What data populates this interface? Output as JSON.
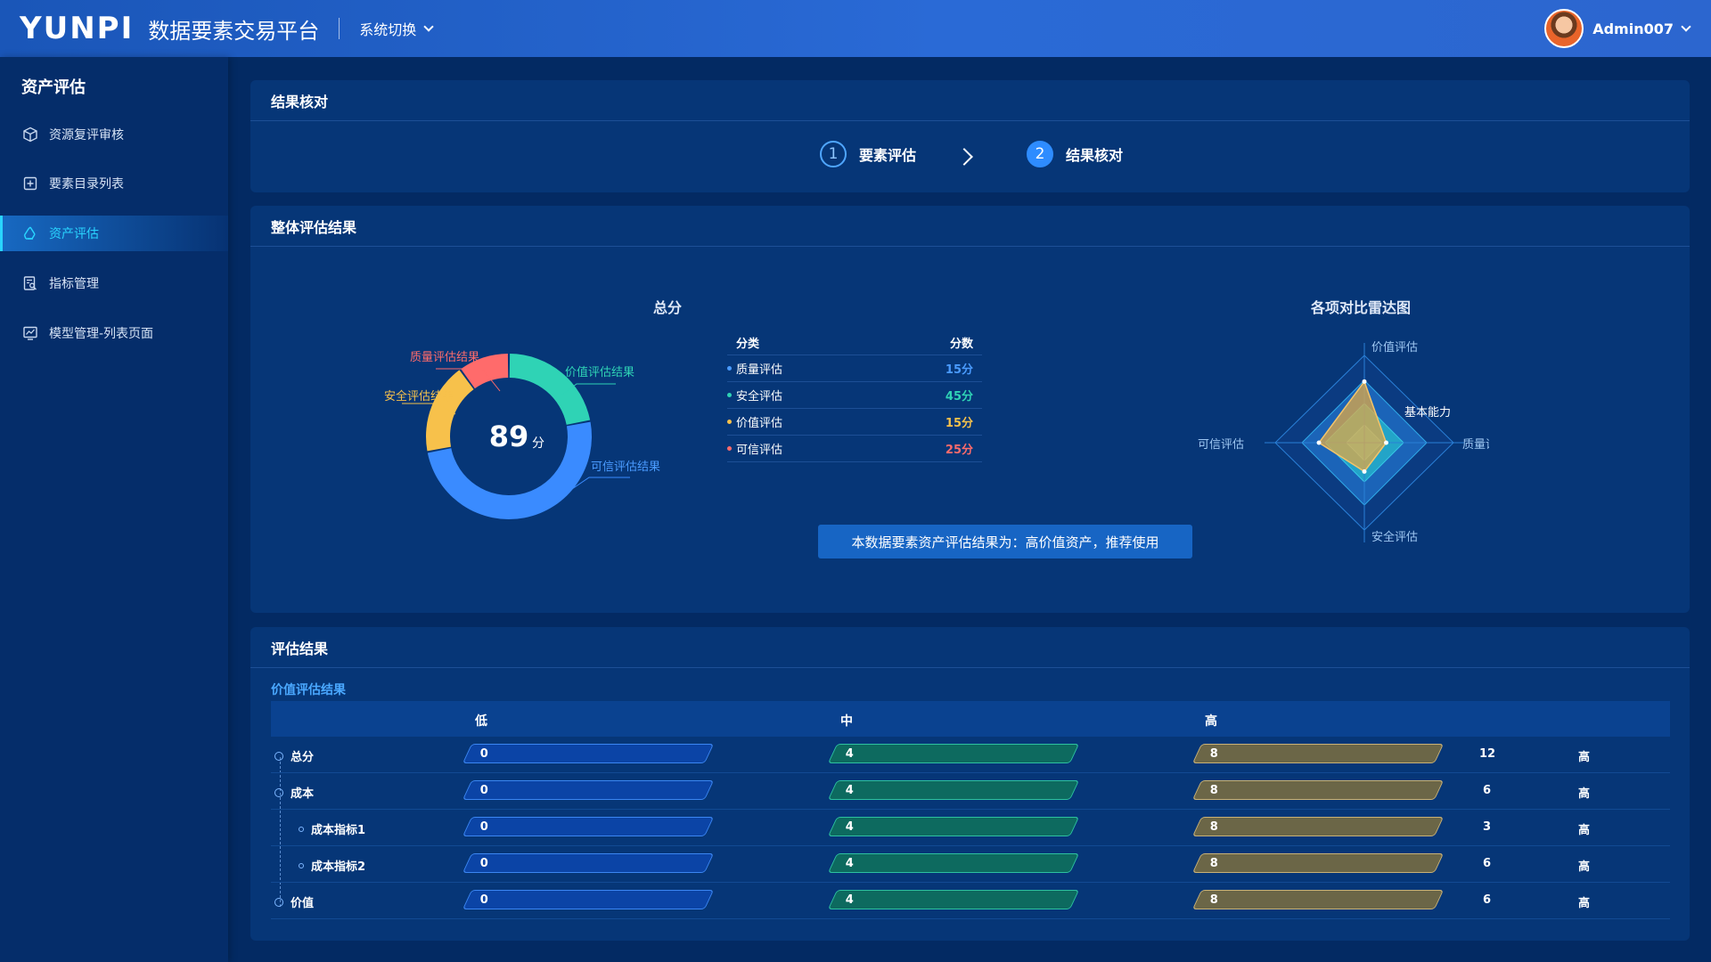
{
  "header": {
    "logo": "YUNPI",
    "platform_title": "数据要素交易平台",
    "system_switch": "系统切换",
    "username": "Admin007"
  },
  "sidebar": {
    "title": "资产评估",
    "items": [
      {
        "label": "资源复评审核",
        "icon": "cube-icon"
      },
      {
        "label": "要素目录列表",
        "icon": "add-box-icon"
      },
      {
        "label": "资产评估",
        "icon": "recycle-icon",
        "active": true
      },
      {
        "label": "指标管理",
        "icon": "document-search-icon"
      },
      {
        "label": "模型管理-列表页面",
        "icon": "chart-window-icon"
      }
    ]
  },
  "result_check": {
    "title": "结果核对",
    "steps": [
      {
        "num": "1",
        "label": "要素评估"
      },
      {
        "num": "2",
        "label": "结果核对",
        "active": true
      }
    ]
  },
  "overall": {
    "title": "整体评估结果",
    "total_title": "总分",
    "radar_title": "各项对比雷达图",
    "score": "89",
    "score_unit": "分",
    "donut_labels": [
      "质量评估结果",
      "价值评估结果",
      "安全评估结果",
      "可信评估结果"
    ],
    "table_headers": {
      "category": "分类",
      "score": "分数"
    },
    "table_rows": [
      {
        "name": "质量评估",
        "score": "15分",
        "color": "#4a9bff"
      },
      {
        "name": "安全评估",
        "score": "45分",
        "color": "#2fd3b5"
      },
      {
        "name": "价值评估",
        "score": "15分",
        "color": "#f7c14b"
      },
      {
        "name": "可信评估",
        "score": "25分",
        "color": "#ff6b6b"
      }
    ],
    "conclusion": "本数据要素资产评估结果为：高价值资产，推荐使用",
    "radar_labels": {
      "top": "价值评估",
      "right": "质量评估",
      "bottom": "安全评估",
      "left": "可信评估",
      "series": "基本能力"
    }
  },
  "chart_data": [
    {
      "type": "pie",
      "categories": [
        "价值评估结果",
        "可信评估结果",
        "安全评估结果",
        "质量评估结果"
      ],
      "values": [
        22,
        50,
        18,
        10
      ],
      "colors": [
        "#2fd3b5",
        "#3a8bff",
        "#f7c14b",
        "#ff6b6b"
      ],
      "title": "总分"
    },
    {
      "type": "radar",
      "axes": [
        "价值评估",
        "质量评估",
        "安全评估",
        "可信评估"
      ],
      "series": [
        {
          "name": "基本能力",
          "values": [
            0.7,
            0.25,
            0.33,
            0.52
          ]
        }
      ],
      "title": "各项对比雷达图"
    }
  ],
  "eval_results": {
    "title": "评估结果",
    "subtitle": "价值评估结果",
    "headers": {
      "low": "低",
      "mid": "中",
      "high": "高"
    },
    "rows": [
      {
        "label": "总分",
        "level": 0,
        "low": "0",
        "mid": "4",
        "high": "8",
        "count": "12",
        "grade": "高"
      },
      {
        "label": "成本",
        "level": 0,
        "low": "0",
        "mid": "4",
        "high": "8",
        "count": "6",
        "grade": "高"
      },
      {
        "label": "成本指标1",
        "level": 1,
        "low": "0",
        "mid": "4",
        "high": "8",
        "count": "3",
        "grade": "高"
      },
      {
        "label": "成本指标2",
        "level": 1,
        "low": "0",
        "mid": "4",
        "high": "8",
        "count": "6",
        "grade": "高"
      },
      {
        "label": "价值",
        "level": 0,
        "low": "0",
        "mid": "4",
        "high": "8",
        "count": "6",
        "grade": "高"
      }
    ]
  }
}
